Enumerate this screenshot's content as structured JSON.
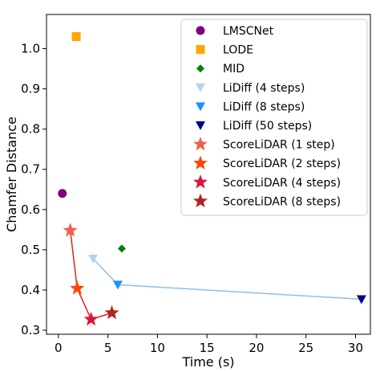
{
  "chart_data": {
    "type": "scatter",
    "title": "",
    "xlabel": "Time (s)",
    "ylabel": "Chamfer Distance",
    "xlim": [
      -1.2,
      31.5
    ],
    "ylim": [
      0.29,
      1.085
    ],
    "xticks": [
      0,
      5,
      10,
      15,
      20,
      25,
      30
    ],
    "yticks": [
      0.3,
      0.4,
      0.5,
      0.6,
      0.7,
      0.8,
      0.9,
      1.0
    ],
    "grid": false,
    "legend_position": "top-right",
    "series": [
      {
        "name": "LMSCNet",
        "marker": "circle",
        "color": "#800080",
        "points": [
          [
            0.4,
            0.64
          ]
        ]
      },
      {
        "name": "LODE",
        "marker": "square",
        "color": "#FFA500",
        "points": [
          [
            1.8,
            1.03
          ]
        ]
      },
      {
        "name": "MID",
        "marker": "diamond",
        "color": "#008000",
        "points": [
          [
            6.4,
            0.503
          ]
        ]
      },
      {
        "name": "LiDiff (4 steps)",
        "marker": "triangle-down",
        "color": "#ADD8E6",
        "points": [
          [
            3.5,
            0.478
          ]
        ]
      },
      {
        "name": "LiDiff (8 steps)",
        "marker": "triangle-down",
        "color": "#1E90FF",
        "points": [
          [
            6.0,
            0.413
          ]
        ]
      },
      {
        "name": "LiDiff (50 steps)",
        "marker": "triangle-down",
        "color": "#00008B",
        "points": [
          [
            30.6,
            0.377
          ]
        ]
      },
      {
        "name": "ScoreLiDAR (1 step)",
        "marker": "star",
        "color": "#F0604C",
        "points": [
          [
            1.2,
            0.548
          ]
        ]
      },
      {
        "name": "ScoreLiDAR (2 steps)",
        "marker": "star",
        "color": "#FF4500",
        "points": [
          [
            1.9,
            0.404
          ]
        ]
      },
      {
        "name": "ScoreLiDAR (4 steps)",
        "marker": "star",
        "color": "#DC143C",
        "points": [
          [
            3.3,
            0.327
          ]
        ]
      },
      {
        "name": "ScoreLiDAR (8 steps)",
        "marker": "star",
        "color": "#B22222",
        "points": [
          [
            5.4,
            0.343
          ]
        ]
      }
    ],
    "connector_lines": [
      {
        "color": "#8FBFE6",
        "series": [
          "LiDiff (4 steps)",
          "LiDiff (8 steps)",
          "LiDiff (50 steps)"
        ]
      },
      {
        "color": "#E02020",
        "series": [
          "ScoreLiDAR (1 step)",
          "ScoreLiDAR (2 steps)",
          "ScoreLiDAR (4 steps)",
          "ScoreLiDAR (8 steps)"
        ]
      }
    ]
  }
}
